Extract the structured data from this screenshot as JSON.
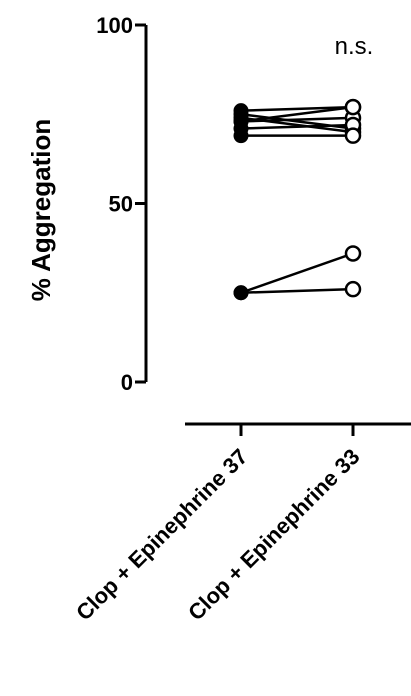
{
  "chart_data": {
    "type": "scatter",
    "subtype": "paired-dot",
    "ylabel": "% Aggregation",
    "ylim": [
      0,
      100
    ],
    "yticks": [
      {
        "value": 0,
        "label": "0"
      },
      {
        "value": 50,
        "label": "50"
      },
      {
        "value": 100,
        "label": "100"
      }
    ],
    "categories": [
      "Clop + Epinephrine 37",
      "Clop + Epinephrine 33"
    ],
    "annotation": "n.s.",
    "pairs": [
      [
        76,
        77
      ],
      [
        75,
        71
      ],
      [
        74,
        70
      ],
      [
        73,
        74
      ],
      [
        73,
        77
      ],
      [
        71,
        72
      ],
      [
        69,
        69
      ],
      [
        25,
        36
      ],
      [
        25,
        26
      ]
    ],
    "marker_styles": [
      "filled",
      "open"
    ],
    "grid": false,
    "legend": "none",
    "colors": {
      "ink": "#000000",
      "paper": "#ffffff"
    }
  }
}
